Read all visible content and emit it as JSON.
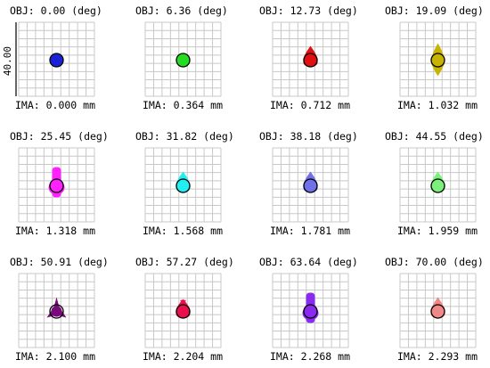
{
  "scale_label": "40.00",
  "cells": [
    {
      "obj": "OBJ: 0.00 (deg)",
      "ima": "IMA: 0.000 mm",
      "color": "#1a22d8",
      "shape": "round"
    },
    {
      "obj": "OBJ: 6.36 (deg)",
      "ima": "IMA: 0.364 mm",
      "color": "#22dd22",
      "shape": "round"
    },
    {
      "obj": "OBJ: 12.73 (deg)",
      "ima": "IMA: 0.712 mm",
      "color": "#e01010",
      "shape": "drop-up"
    },
    {
      "obj": "OBJ: 19.09 (deg)",
      "ima": "IMA: 1.032 mm",
      "color": "#c8b400",
      "shape": "spindle"
    },
    {
      "obj": "OBJ: 25.45 (deg)",
      "ima": "IMA: 1.318 mm",
      "color": "#ff22ff",
      "shape": "tall"
    },
    {
      "obj": "OBJ: 31.82 (deg)",
      "ima": "IMA: 1.568 mm",
      "color": "#22f0f0",
      "shape": "drop-up"
    },
    {
      "obj": "OBJ: 38.18 (deg)",
      "ima": "IMA: 1.781 mm",
      "color": "#7070e8",
      "shape": "drop-up"
    },
    {
      "obj": "OBJ: 44.55 (deg)",
      "ima": "IMA: 1.959 mm",
      "color": "#7cf07c",
      "shape": "drop-up"
    },
    {
      "obj": "OBJ: 50.91 (deg)",
      "ima": "IMA: 2.100 mm",
      "color": "#7a0a7a",
      "shape": "star"
    },
    {
      "obj": "OBJ: 57.27 (deg)",
      "ima": "IMA: 2.204 mm",
      "color": "#e8104c",
      "shape": "cross"
    },
    {
      "obj": "OBJ: 63.64 (deg)",
      "ima": "IMA: 2.268 mm",
      "color": "#8a2af0",
      "shape": "tall"
    },
    {
      "obj": "OBJ: 70.00 (deg)",
      "ima": "IMA: 2.293 mm",
      "color": "#f08888",
      "shape": "drop-up"
    }
  ]
}
